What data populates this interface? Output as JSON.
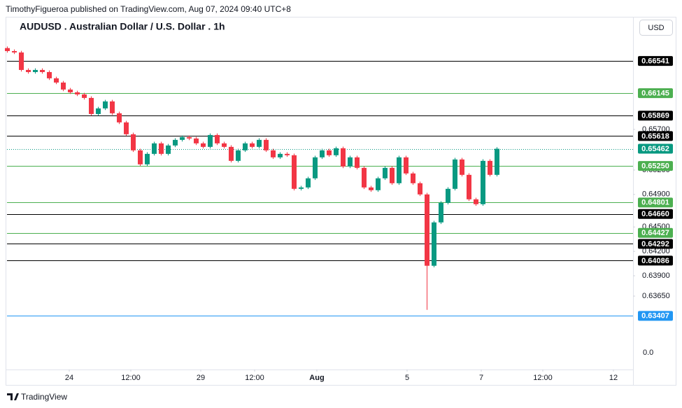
{
  "chart_data": {
    "type": "candlestick",
    "source": "TimothyFigueroa published on TradingView.com, Aug 07, 2024 09:40 UTC+8",
    "title": "AUDUSD . Australian Dollar / U.S. Dollar . 1h",
    "currency": "USD",
    "footer": "TradingView",
    "axis_note": "0.0",
    "up_color": "#089981",
    "down_color": "#f23645",
    "xlim": [
      -0.2,
      89.5
    ],
    "xticks": [
      {
        "value": 8.9,
        "label": "24"
      },
      {
        "value": 17.7,
        "label": "12:00"
      },
      {
        "value": 27.7,
        "label": "29"
      },
      {
        "value": 35.4,
        "label": "12:00"
      },
      {
        "value": 44.3,
        "label": "Aug"
      },
      {
        "value": 57.2,
        "label": "5"
      },
      {
        "value": 67.8,
        "label": "7"
      },
      {
        "value": 76.6,
        "label": "12:00"
      },
      {
        "value": 86.7,
        "label": "12"
      }
    ],
    "ylim": [
      0.62747,
      0.67076
    ],
    "yticks": [
      {
        "value": 0.657,
        "label": "0.65700"
      },
      {
        "value": 0.652,
        "label": "0.65200"
      },
      {
        "value": 0.649,
        "label": "0.64900"
      },
      {
        "value": 0.645,
        "label": "0.64500"
      },
      {
        "value": 0.642,
        "label": "0.64200"
      },
      {
        "value": 0.639,
        "label": "0.63900"
      },
      {
        "value": 0.6365,
        "label": "0.63650"
      }
    ],
    "levels": [
      {
        "value": 0.66541,
        "color": "#000000"
      },
      {
        "value": 0.66145,
        "color": "#4caf50"
      },
      {
        "value": 0.65869,
        "color": "#000000"
      },
      {
        "value": 0.65618,
        "color": "#000000"
      },
      {
        "value": 0.6525,
        "label": "0.65250",
        "color": "#4caf50"
      },
      {
        "value": 0.64801,
        "color": "#4caf50"
      },
      {
        "value": 0.6466,
        "label": "0.64660",
        "color": "#000000"
      },
      {
        "value": 0.64427,
        "color": "#4caf50"
      },
      {
        "value": 0.64292,
        "color": "#000000"
      },
      {
        "value": 0.64086,
        "color": "#000000"
      },
      {
        "value": 0.63407,
        "color": "#2196f3"
      }
    ],
    "last_price": {
      "value": 0.65462,
      "color": "#089981"
    },
    "open": [
      0.667,
      0.66663,
      0.66646,
      0.66431,
      0.66405,
      0.66431,
      0.66405,
      0.66328,
      0.66276,
      0.6619,
      0.66156,
      0.6613,
      0.66087,
      0.65889,
      0.65958,
      0.66044,
      0.65898,
      0.65786,
      0.6564,
      0.65442,
      0.6527,
      0.65399,
      0.65528,
      0.65399,
      0.65502,
      0.65571,
      0.65605,
      0.65588,
      0.65528,
      0.65485,
      0.65631,
      0.65528,
      0.65485,
      0.65313,
      0.65442,
      0.65528,
      0.65485,
      0.65571,
      0.65442,
      0.65356,
      0.65399,
      0.65382,
      0.64969,
      0.64986,
      0.65098,
      0.65356,
      0.65442,
      0.65382,
      0.65468,
      0.65244,
      0.65356,
      0.65227,
      0.64986,
      0.64952,
      0.65098,
      0.65227,
      0.65038,
      0.65356,
      0.65158,
      0.65038,
      0.649,
      0.64023,
      0.64556,
      0.64797,
      0.64969,
      0.6533,
      0.65141,
      0.6484,
      0.6478,
      0.65313,
      0.65141
    ],
    "high": [
      0.6672,
      0.66683,
      0.66666,
      0.66451,
      0.66451,
      0.66451,
      0.66425,
      0.66348,
      0.66296,
      0.6621,
      0.66176,
      0.6615,
      0.66107,
      0.65978,
      0.66064,
      0.66064,
      0.65918,
      0.65806,
      0.6566,
      0.65462,
      0.65419,
      0.65548,
      0.65548,
      0.65522,
      0.65591,
      0.65625,
      0.65625,
      0.65608,
      0.65548,
      0.65651,
      0.65651,
      0.65548,
      0.65505,
      0.65462,
      0.65548,
      0.65548,
      0.65591,
      0.65591,
      0.65462,
      0.65419,
      0.65419,
      0.65402,
      0.65006,
      0.65118,
      0.65376,
      0.65462,
      0.65462,
      0.65488,
      0.65488,
      0.65376,
      0.65376,
      0.65247,
      0.65006,
      0.65118,
      0.65247,
      0.65247,
      0.65376,
      0.65376,
      0.65178,
      0.65058,
      0.6492,
      0.64576,
      0.64817,
      0.64989,
      0.6535,
      0.6535,
      0.65161,
      0.6486,
      0.65333,
      0.65333,
      0.65482
    ],
    "low": [
      0.66643,
      0.66626,
      0.66411,
      0.66385,
      0.66385,
      0.66385,
      0.66308,
      0.66256,
      0.6617,
      0.66136,
      0.6611,
      0.66067,
      0.65869,
      0.65869,
      0.65938,
      0.65878,
      0.65766,
      0.6562,
      0.65422,
      0.6525,
      0.6525,
      0.65379,
      0.65379,
      0.65379,
      0.65482,
      0.65551,
      0.65568,
      0.65508,
      0.65465,
      0.65465,
      0.65508,
      0.65465,
      0.65293,
      0.65293,
      0.65422,
      0.65465,
      0.65465,
      0.65422,
      0.65336,
      0.65336,
      0.65362,
      0.64949,
      0.64949,
      0.64966,
      0.65078,
      0.65336,
      0.65362,
      0.65362,
      0.65224,
      0.65224,
      0.65207,
      0.64966,
      0.64932,
      0.64932,
      0.65078,
      0.65018,
      0.65018,
      0.65138,
      0.65018,
      0.6488,
      0.63481,
      0.64003,
      0.64536,
      0.64777,
      0.64949,
      0.65121,
      0.6482,
      0.6476,
      0.6476,
      0.65121,
      0.65121
    ],
    "close": [
      0.66663,
      0.66646,
      0.66431,
      0.66405,
      0.66431,
      0.66405,
      0.66328,
      0.66276,
      0.6619,
      0.66156,
      0.6613,
      0.66087,
      0.65889,
      0.65958,
      0.66044,
      0.65898,
      0.65786,
      0.6564,
      0.65442,
      0.6527,
      0.65399,
      0.65528,
      0.65399,
      0.65502,
      0.65571,
      0.65605,
      0.65588,
      0.65528,
      0.65485,
      0.65631,
      0.65528,
      0.65485,
      0.65313,
      0.65442,
      0.65528,
      0.65485,
      0.65571,
      0.65442,
      0.65356,
      0.65399,
      0.65382,
      0.64969,
      0.64986,
      0.65098,
      0.65356,
      0.65442,
      0.65382,
      0.65468,
      0.65244,
      0.65356,
      0.65227,
      0.64986,
      0.64952,
      0.65098,
      0.65227,
      0.65038,
      0.65356,
      0.65158,
      0.65038,
      0.649,
      0.64023,
      0.64556,
      0.64797,
      0.64969,
      0.6533,
      0.65141,
      0.6484,
      0.6478,
      0.65313,
      0.65141,
      0.65462
    ]
  }
}
